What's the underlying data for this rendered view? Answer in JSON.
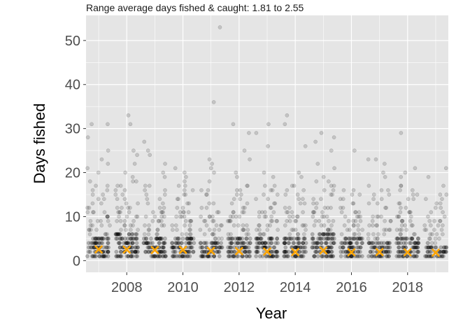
{
  "chart_data": {
    "type": "scatter",
    "title": "",
    "subtitle": "Range average days fished & caught: 1.81 to 2.55",
    "xlabel": "Year",
    "ylabel": "Days fished",
    "xlim": [
      2006.55,
      2019.45
    ],
    "ylim": [
      -2.65,
      55.7
    ],
    "x_ticks": [
      2008,
      2010,
      2012,
      2014,
      2016,
      2018
    ],
    "y_ticks": [
      0,
      10,
      20,
      30,
      40,
      50
    ],
    "grid": true,
    "legend": "none",
    "series": [
      {
        "values": [
          {
            "year": 2007,
            "max_dense": 5,
            "scattered": [
              6,
              7,
              8,
              9,
              10,
              11,
              12,
              13,
              14,
              15,
              16,
              17,
              18,
              20,
              21,
              22,
              23,
              25,
              28,
              31,
              31
            ]
          },
          {
            "year": 2008,
            "max_dense": 6,
            "scattered": [
              7,
              8,
              9,
              10,
              11,
              12,
              13,
              14,
              15,
              16,
              17,
              18,
              19,
              20,
              22,
              24,
              25,
              31,
              33
            ]
          },
          {
            "year": 2009,
            "max_dense": 5,
            "scattered": [
              6,
              7,
              8,
              9,
              10,
              11,
              12,
              13,
              14,
              15,
              16,
              17,
              19,
              20,
              22,
              24,
              25,
              27
            ]
          },
          {
            "year": 2010,
            "max_dense": 5,
            "scattered": [
              6,
              7,
              8,
              9,
              10,
              11,
              12,
              13,
              14,
              15,
              16,
              17,
              18,
              19,
              20,
              21
            ]
          },
          {
            "year": 2011,
            "max_dense": 4,
            "scattered": [
              5,
              6,
              7,
              8,
              9,
              10,
              11,
              12,
              13,
              15,
              16,
              18,
              20,
              21,
              22,
              23,
              36,
              53
            ]
          },
          {
            "year": 2012,
            "max_dense": 5,
            "scattered": [
              6,
              7,
              8,
              9,
              10,
              11,
              12,
              13,
              14,
              15,
              16,
              17,
              19,
              20,
              23,
              25,
              29,
              31
            ]
          },
          {
            "year": 2013,
            "max_dense": 5,
            "scattered": [
              6,
              7,
              8,
              9,
              10,
              11,
              12,
              13,
              14,
              15,
              16,
              17,
              19,
              20,
              26,
              29,
              31
            ]
          },
          {
            "year": 2014,
            "max_dense": 5,
            "scattered": [
              6,
              7,
              8,
              9,
              10,
              11,
              12,
              13,
              14,
              15,
              16,
              17,
              19,
              20,
              26,
              31,
              33
            ]
          },
          {
            "year": 2015,
            "max_dense": 6,
            "scattered": [
              7,
              8,
              9,
              10,
              11,
              12,
              13,
              14,
              15,
              16,
              17,
              18,
              19,
              21,
              22,
              25,
              27,
              28,
              29
            ]
          },
          {
            "year": 2016,
            "max_dense": 5,
            "scattered": [
              6,
              7,
              8,
              9,
              10,
              11,
              12,
              13,
              14,
              15,
              16,
              25
            ]
          },
          {
            "year": 2017,
            "max_dense": 4,
            "scattered": [
              5,
              6,
              7,
              8,
              9,
              10,
              12,
              13,
              14,
              15,
              16,
              17,
              19,
              20,
              22,
              23,
              23
            ]
          },
          {
            "year": 2018,
            "max_dense": 5,
            "scattered": [
              6,
              7,
              8,
              9,
              10,
              11,
              12,
              13,
              14,
              15,
              16,
              17,
              19,
              20,
              21,
              29
            ]
          },
          {
            "year": 2019,
            "max_dense": 3,
            "scattered": [
              4,
              5,
              6,
              7,
              8,
              9,
              10,
              11,
              12,
              13,
              14,
              15,
              17,
              19,
              21
            ]
          }
        ],
        "color": "#000000"
      },
      {
        "values": [
          {
            "year": 2007,
            "average": 2.55
          },
          {
            "year": 2008,
            "average": 2.5
          },
          {
            "year": 2009,
            "average": 2.4
          },
          {
            "year": 2010,
            "average": 2.45
          },
          {
            "year": 2011,
            "average": 2.2
          },
          {
            "year": 2012,
            "average": 2.15
          },
          {
            "year": 2013,
            "average": 2.05
          },
          {
            "year": 2014,
            "average": 1.95
          },
          {
            "year": 2015,
            "average": 2.3
          },
          {
            "year": 2016,
            "average": 1.9
          },
          {
            "year": 2017,
            "average": 1.95
          },
          {
            "year": 2018,
            "average": 1.9
          },
          {
            "year": 2019,
            "average": 1.81
          }
        ],
        "color": "#ffa500"
      }
    ],
    "colors": {
      "panel_background": "#e5e5e5",
      "grid_line": "#ffffff",
      "tick_text": "#4d4d4d",
      "point": "#000000",
      "average_marker": "#ffa500"
    }
  }
}
